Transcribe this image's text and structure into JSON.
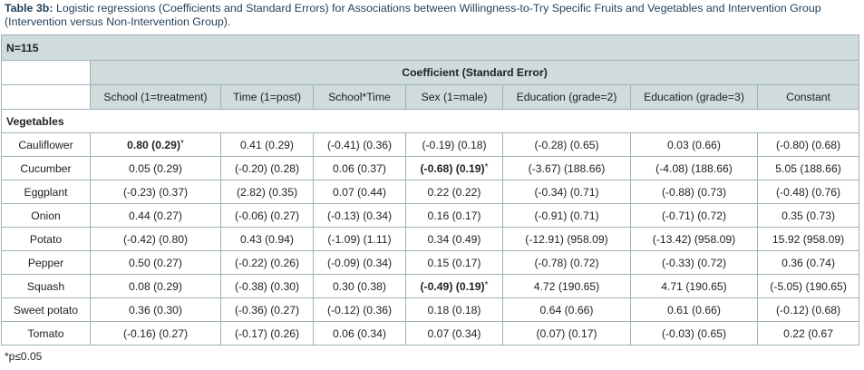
{
  "caption": {
    "label": "Table 3b:",
    "text": "Logistic regressions (Coefficients and Standard Errors) for Associations between Willingness-to-Try Specific Fruits and Vegetables and Intervention Group (Intervention versus Non-Intervention Group)."
  },
  "table": {
    "n_label": "N=115",
    "coef_header": "Coefficient (Standard Error)",
    "columns": [
      "School (1=treatment)",
      "Time (1=post)",
      "School*Time",
      "Sex (1=male)",
      "Education (grade=2)",
      "Education (grade=3)",
      "Constant"
    ],
    "section_label": "Vegetables",
    "rows": [
      {
        "label": "Cauliflower",
        "cells": [
          {
            "v": "0.80 (0.29)",
            "b": true,
            "s": "*"
          },
          {
            "v": "0.41 (0.29)"
          },
          {
            "v": "(-0.41) (0.36)"
          },
          {
            "v": "(-0.19) (0.18)"
          },
          {
            "v": "(-0.28) (0.65)"
          },
          {
            "v": "0.03 (0.66)"
          },
          {
            "v": "(-0.80) (0.68)"
          }
        ]
      },
      {
        "label": "Cucumber",
        "cells": [
          {
            "v": "0.05 (0.29)"
          },
          {
            "v": "(-0.20) (0.28)"
          },
          {
            "v": "0.06 (0.37)"
          },
          {
            "v": "(-0.68) (0.19)",
            "b": true,
            "s": "*"
          },
          {
            "v": "(-3.67) (188.66)"
          },
          {
            "v": "(-4.08) (188.66)"
          },
          {
            "v": "5.05 (188.66)"
          }
        ]
      },
      {
        "label": "Eggplant",
        "cells": [
          {
            "v": "(-0.23) (0.37)"
          },
          {
            "v": "(2.82) (0.35)"
          },
          {
            "v": "0.07 (0.44)"
          },
          {
            "v": "0.22 (0.22)"
          },
          {
            "v": "(-0.34) (0.71)"
          },
          {
            "v": "(-0.88) (0.73)"
          },
          {
            "v": "(-0.48) (0.76)"
          }
        ]
      },
      {
        "label": "Onion",
        "cells": [
          {
            "v": "0.44 (0.27)"
          },
          {
            "v": "(-0.06) (0.27)"
          },
          {
            "v": "(-0.13) (0.34)"
          },
          {
            "v": "0.16 (0.17)"
          },
          {
            "v": "(-0.91) (0.71)"
          },
          {
            "v": "(-0.71) (0.72)"
          },
          {
            "v": "0.35 (0.73)"
          }
        ]
      },
      {
        "label": "Potato",
        "cells": [
          {
            "v": "(-0.42) (0.80)"
          },
          {
            "v": "0.43 (0.94)"
          },
          {
            "v": "(-1.09) (1.11)"
          },
          {
            "v": "0.34 (0.49)"
          },
          {
            "v": "(-12.91) (958.09)"
          },
          {
            "v": "(-13.42) (958.09)"
          },
          {
            "v": "15.92 (958.09)"
          }
        ]
      },
      {
        "label": "Pepper",
        "cells": [
          {
            "v": "0.50 (0.27)"
          },
          {
            "v": "(-0.22) (0.26)"
          },
          {
            "v": "(-0.09) (0.34)"
          },
          {
            "v": "0.15 (0.17)"
          },
          {
            "v": "(-0.78) (0.72)"
          },
          {
            "v": "(-0.33) (0.72)"
          },
          {
            "v": "0.36 (0.74)"
          }
        ]
      },
      {
        "label": "Squash",
        "cells": [
          {
            "v": "0.08 (0.29)"
          },
          {
            "v": "(-0.38) (0.30)"
          },
          {
            "v": "0.30 (0.38)"
          },
          {
            "v": "(-0.49) (0.19)",
            "b": true,
            "s": "*"
          },
          {
            "v": "4.72 (190.65)"
          },
          {
            "v": "4.71 (190.65)"
          },
          {
            "v": "(-5.05) (190.65)"
          }
        ]
      },
      {
        "label": "Sweet potato",
        "cells": [
          {
            "v": "0.36 (0.30)"
          },
          {
            "v": "(-0.36) (0.27)"
          },
          {
            "v": "(-0.12) (0.36)"
          },
          {
            "v": "0.18 (0.18)"
          },
          {
            "v": "0.64 (0.66)"
          },
          {
            "v": "0.61 (0.66)"
          },
          {
            "v": "(-0.12) (0.68)"
          }
        ]
      },
      {
        "label": "Tomato",
        "cells": [
          {
            "v": "(-0.16) (0.27)"
          },
          {
            "v": "(-0.17) (0.26)"
          },
          {
            "v": "0.06 (0.34)"
          },
          {
            "v": "0.07 (0.34)"
          },
          {
            "v": "(0.07) (0.17)"
          },
          {
            "v": "(-0.03) (0.65)"
          },
          {
            "v": "0.22 (0.67"
          }
        ]
      }
    ]
  },
  "footnote": "*p≤0.05"
}
